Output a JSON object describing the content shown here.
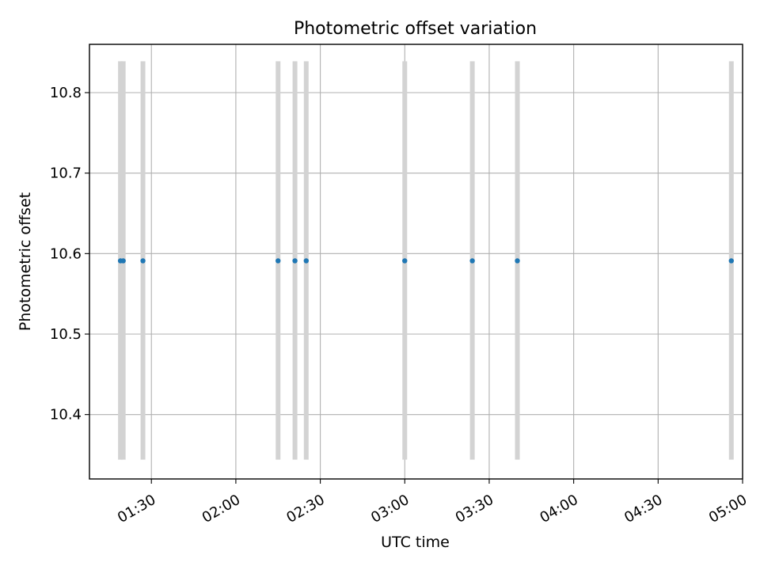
{
  "chart_data": {
    "type": "scatter",
    "title": "Photometric offset variation",
    "xlabel": "UTC time",
    "ylabel": "Photometric offset",
    "x_axis_kind": "time",
    "x_ticks": [
      "01:30",
      "02:00",
      "02:30",
      "03:00",
      "03:30",
      "04:00",
      "04:30",
      "05:00"
    ],
    "y_ticks": [
      "10.4",
      "10.5",
      "10.6",
      "10.7",
      "10.8"
    ],
    "xlim": [
      "01:08",
      "05:00"
    ],
    "ylim": [
      10.32,
      10.86
    ],
    "grid": true,
    "series": [
      {
        "color": "#1f77b4",
        "x": [
          "01:19",
          "01:20",
          "01:27",
          "02:15",
          "02:21",
          "02:25",
          "03:00",
          "03:24",
          "03:40",
          "04:56"
        ],
        "y": [
          10.591,
          10.591,
          10.591,
          10.591,
          10.591,
          10.591,
          10.591,
          10.591,
          10.591,
          10.591
        ]
      }
    ],
    "vertical_spans": {
      "color": "#d3d3d3",
      "y_range": [
        10.344,
        10.839
      ],
      "x": [
        "01:19",
        "01:20",
        "01:27",
        "02:15",
        "02:21",
        "02:25",
        "03:00",
        "03:24",
        "03:40",
        "04:56"
      ]
    }
  }
}
